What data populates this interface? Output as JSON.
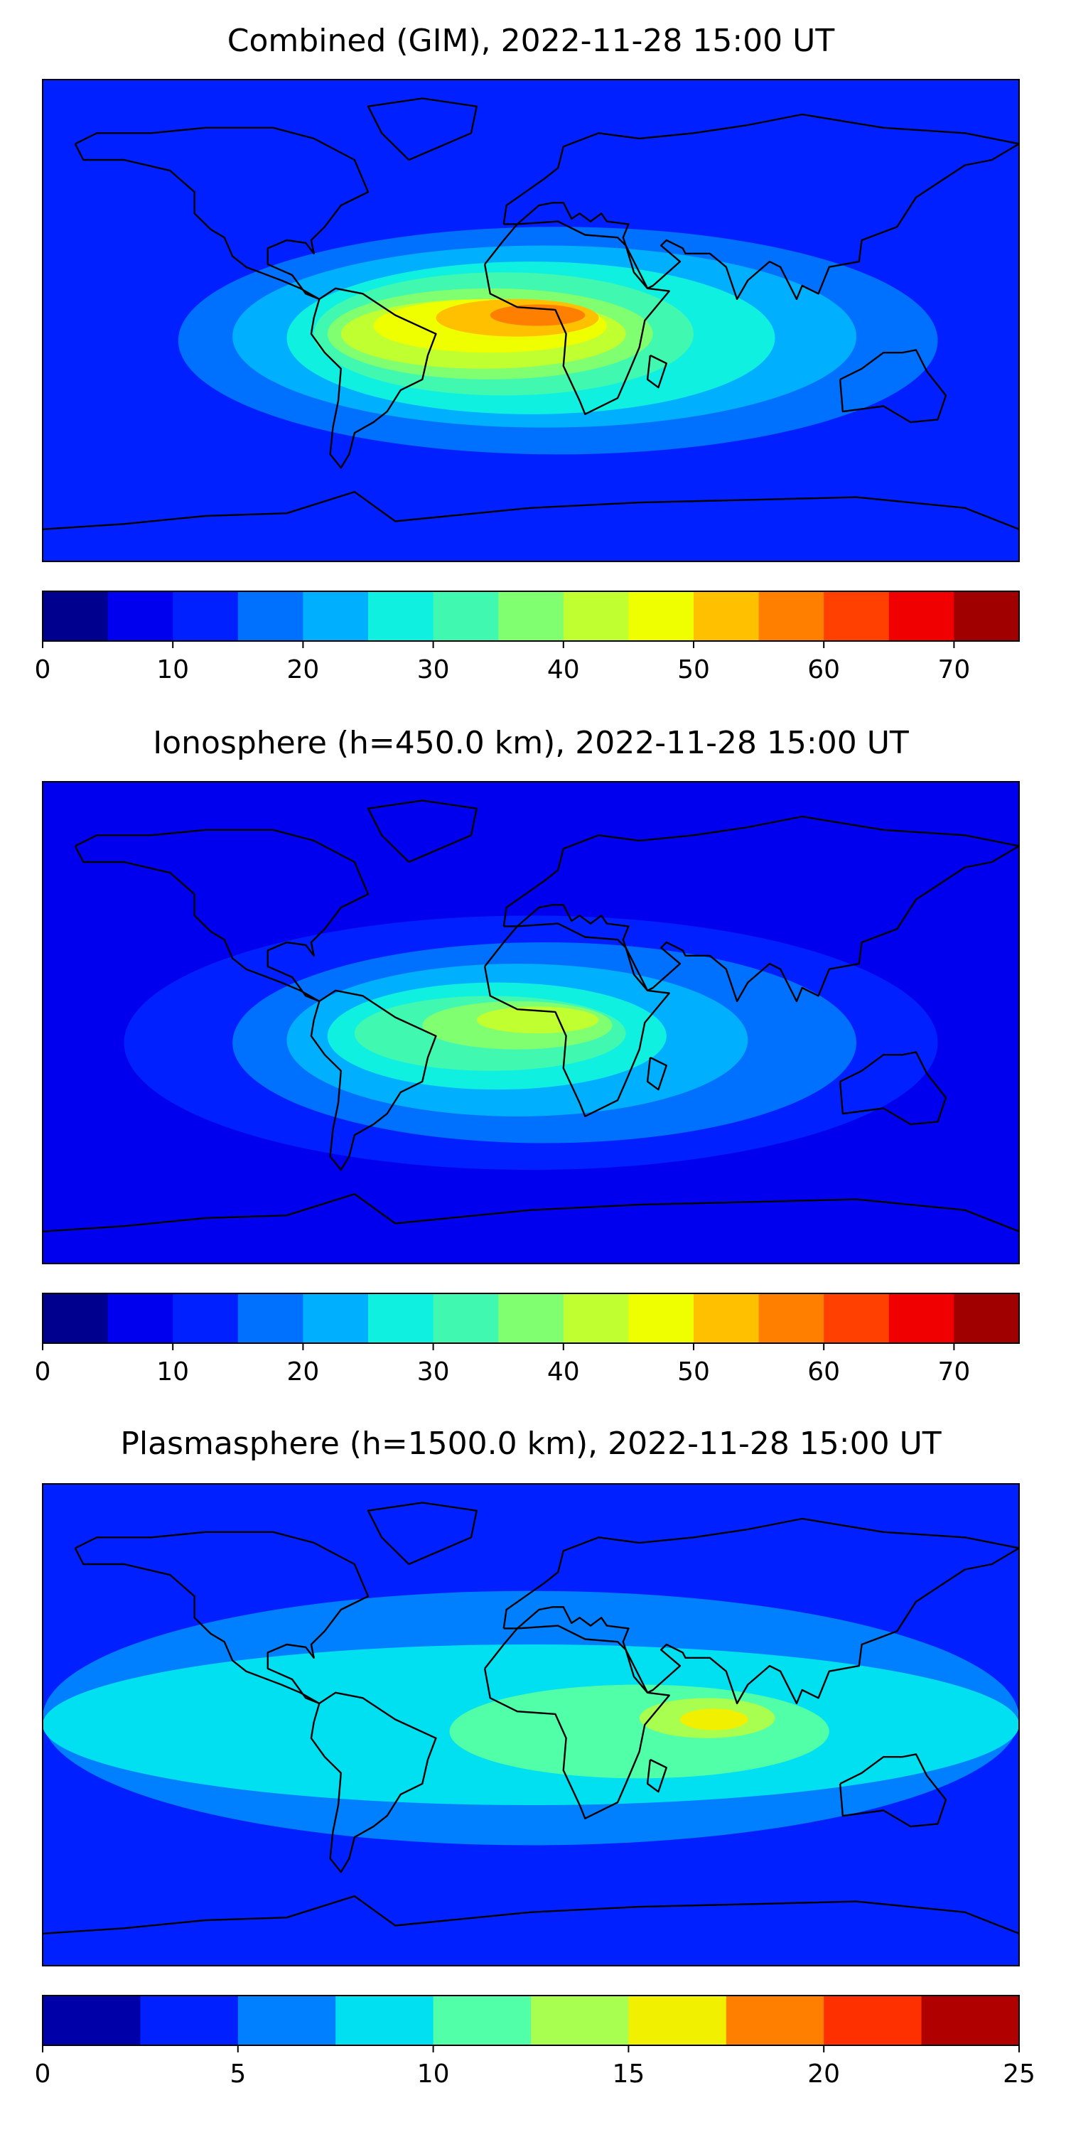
{
  "chart_data": [
    {
      "type": "heatmap",
      "title": "Combined (GIM), 2022-11-28 15:00 UT",
      "colorbar": {
        "levels": [
          0,
          5,
          10,
          15,
          20,
          25,
          30,
          35,
          40,
          45,
          50,
          55,
          60,
          65,
          70,
          75
        ],
        "ticks": [
          0,
          10,
          20,
          30,
          40,
          50,
          60,
          70
        ],
        "tick_labels": [
          "0",
          "10",
          "20",
          "30",
          "40",
          "50",
          "60",
          "70"
        ],
        "colors": [
          "#00008f",
          "#0000ee",
          "#0020ff",
          "#0070ff",
          "#00b0ff",
          "#10f0e0",
          "#40f8b0",
          "#80ff70",
          "#c0ff30",
          "#f0ff00",
          "#ffc000",
          "#ff8000",
          "#ff4000",
          "#f00000",
          "#a00000"
        ]
      },
      "field": [
        {
          "lon": [
            -180,
            180
          ],
          "lat": [
            -90,
            90
          ],
          "level": 2
        },
        {
          "lon": [
            -130,
            150
          ],
          "lat": [
            -50,
            35
          ],
          "level": 3
        },
        {
          "lon": [
            -110,
            120
          ],
          "lat": [
            -40,
            28
          ],
          "level": 4
        },
        {
          "lon": [
            -90,
            90
          ],
          "lat": [
            -35,
            22
          ],
          "level": 5
        },
        {
          "lon": [
            -80,
            60
          ],
          "lat": [
            -28,
            18
          ],
          "level": 6
        },
        {
          "lon": [
            -75,
            45
          ],
          "lat": [
            -22,
            12
          ],
          "level": 7
        },
        {
          "lon": [
            -70,
            35
          ],
          "lat": [
            -18,
            8
          ],
          "level": 8
        },
        {
          "lon": [
            -58,
            28
          ],
          "lat": [
            -12,
            8
          ],
          "level": 9
        },
        {
          "lon": [
            -35,
            25
          ],
          "lat": [
            -6,
            8
          ],
          "level": 10
        },
        {
          "lon": [
            -15,
            20
          ],
          "lat": [
            -2,
            6
          ],
          "level": 11
        }
      ]
    },
    {
      "type": "heatmap",
      "title": "Ionosphere  (h=450.0 km), 2022-11-28 15:00 UT",
      "colorbar": {
        "levels": [
          0,
          5,
          10,
          15,
          20,
          25,
          30,
          35,
          40,
          45,
          50,
          55,
          60,
          65,
          70,
          75
        ],
        "ticks": [
          0,
          10,
          20,
          30,
          40,
          50,
          60,
          70
        ],
        "tick_labels": [
          "0",
          "10",
          "20",
          "30",
          "40",
          "50",
          "60",
          "70"
        ],
        "colors": [
          "#00008f",
          "#0000ee",
          "#0020ff",
          "#0070ff",
          "#00b0ff",
          "#10f0e0",
          "#40f8b0",
          "#80ff70",
          "#c0ff30",
          "#f0ff00",
          "#ffc000",
          "#ff8000",
          "#ff4000",
          "#f00000",
          "#a00000"
        ]
      },
      "field": [
        {
          "lon": [
            -180,
            180
          ],
          "lat": [
            -90,
            90
          ],
          "level": 1
        },
        {
          "lon": [
            -150,
            150
          ],
          "lat": [
            -55,
            40
          ],
          "level": 2
        },
        {
          "lon": [
            -110,
            120
          ],
          "lat": [
            -45,
            30
          ],
          "level": 3
        },
        {
          "lon": [
            -90,
            80
          ],
          "lat": [
            -35,
            22
          ],
          "level": 4
        },
        {
          "lon": [
            -75,
            50
          ],
          "lat": [
            -25,
            15
          ],
          "level": 5
        },
        {
          "lon": [
            -65,
            35
          ],
          "lat": [
            -18,
            10
          ],
          "level": 6
        },
        {
          "lon": [
            -40,
            30
          ],
          "lat": [
            -10,
            8
          ],
          "level": 7
        },
        {
          "lon": [
            -20,
            25
          ],
          "lat": [
            -4,
            6
          ],
          "level": 8
        }
      ]
    },
    {
      "type": "heatmap",
      "title": "Plasmasphere (h=1500.0 km), 2022-11-28 15:00 UT",
      "colorbar": {
        "levels": [
          0,
          2.5,
          5,
          7.5,
          10,
          12.5,
          15,
          17.5,
          20,
          22.5,
          25
        ],
        "ticks": [
          0,
          5,
          10,
          15,
          20,
          25
        ],
        "tick_labels": [
          "0",
          "5",
          "10",
          "15",
          "20",
          "25"
        ],
        "colors": [
          "#0000a8",
          "#0020ff",
          "#0080ff",
          "#00e0f0",
          "#50ffa8",
          "#a8ff50",
          "#f0f000",
          "#ff8000",
          "#ff3000",
          "#b00000"
        ]
      },
      "field": [
        {
          "lon": [
            -180,
            180
          ],
          "lat": [
            -90,
            90
          ],
          "level": 1
        },
        {
          "lon": [
            -180,
            180
          ],
          "lat": [
            -45,
            50
          ],
          "level": 2
        },
        {
          "lon": [
            -180,
            180
          ],
          "lat": [
            -30,
            30
          ],
          "level": 3
        },
        {
          "lon": [
            -30,
            110
          ],
          "lat": [
            -20,
            15
          ],
          "level": 4
        },
        {
          "lon": [
            40,
            90
          ],
          "lat": [
            -5,
            10
          ],
          "level": 5
        },
        {
          "lon": [
            55,
            80
          ],
          "lat": [
            -2,
            6
          ],
          "level": 6
        }
      ]
    }
  ]
}
